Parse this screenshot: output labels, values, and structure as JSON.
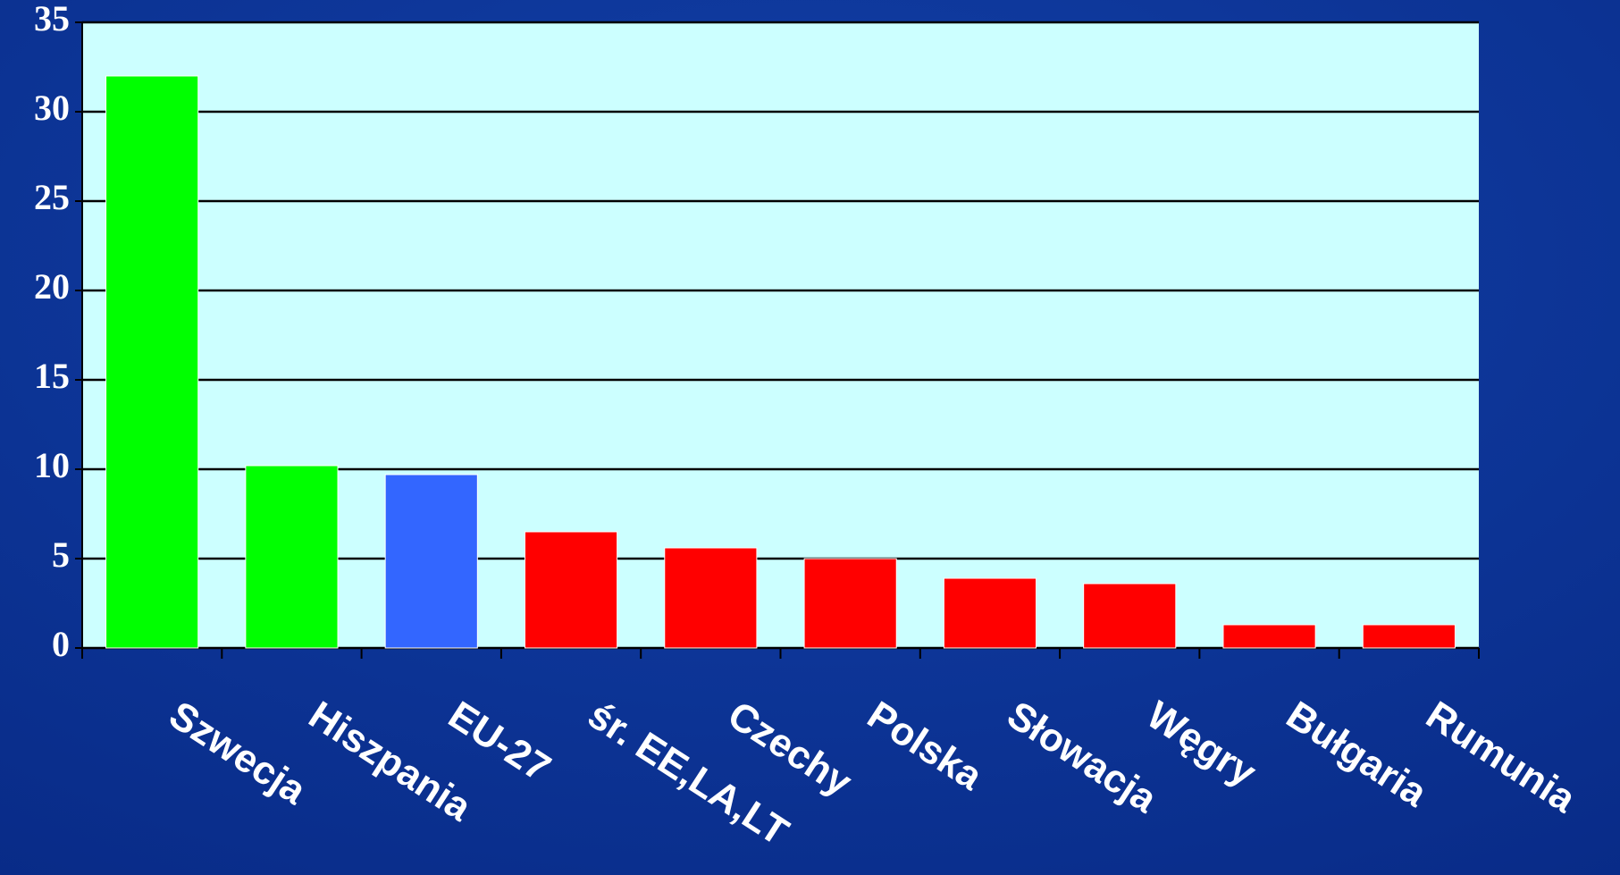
{
  "chart_data": {
    "type": "bar",
    "categories": [
      "Szwecja",
      "Hiszpania",
      "EU-27",
      "śr. EE,LA,LT",
      "Czechy",
      "Polska",
      "Słowacja",
      "Węgry",
      "Bułgaria",
      "Rumunia"
    ],
    "values": [
      32,
      10.2,
      9.7,
      6.5,
      5.6,
      5.0,
      3.9,
      3.6,
      1.3,
      1.3
    ],
    "colors": [
      "#00ff00",
      "#00ff00",
      "#3366ff",
      "#ff0000",
      "#ff0000",
      "#ff0000",
      "#ff0000",
      "#ff0000",
      "#ff0000",
      "#ff0000"
    ],
    "ylim": [
      0,
      35
    ],
    "yticks": [
      0,
      5,
      10,
      15,
      20,
      25,
      30,
      35
    ],
    "grid": true
  }
}
